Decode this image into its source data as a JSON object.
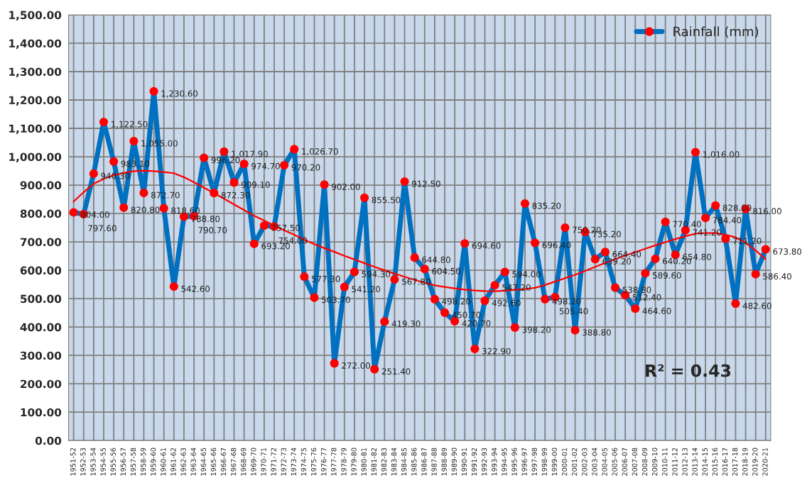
{
  "chart_data": {
    "type": "line",
    "categories": [
      "1951-52",
      "1952-53",
      "1953-54",
      "1954-55",
      "1955-56",
      "1956-57",
      "1957-58",
      "1958-59",
      "1959-60",
      "1960-61",
      "1961-62",
      "1962-63",
      "1963-64",
      "1964-65",
      "1965-66",
      "1966-67",
      "1967-68",
      "1968-69",
      "1969-70",
      "1970-71",
      "1971-72",
      "1972-73",
      "1973-74",
      "1974-75",
      "1975-76",
      "1976-77",
      "1977-78",
      "1978-79",
      "1979-80",
      "1980-81",
      "1981-82",
      "1982-83",
      "1983-84",
      "1984-85",
      "1985-86",
      "1986-87",
      "1987-88",
      "1988-89",
      "1989-90",
      "1990-91",
      "1991-92",
      "1992-93",
      "1993-94",
      "1994-95",
      "1995-96",
      "1996-97",
      "1997-98",
      "1998-99",
      "1999-00",
      "2000-01",
      "2001-02",
      "2002-03",
      "2003-04",
      "2004-05",
      "2005-06",
      "2006-07",
      "2007-08",
      "2008-09",
      "2009-10",
      "2010-11",
      "2011-12",
      "2012-13",
      "2013-14",
      "2014-15",
      "2015-16",
      "2016-17",
      "2017-18",
      "2018-19",
      "2019-20",
      "2020-21"
    ],
    "series": [
      {
        "name": "Rainfall (mm)",
        "color": "#0070c0",
        "marker": "circle",
        "values": [
          804.0,
          797.6,
          940.3,
          1122.5,
          983.1,
          820.8,
          1055.0,
          872.7,
          1230.6,
          818.6,
          542.6,
          788.8,
          790.7,
          996.2,
          872.3,
          1017.9,
          909.1,
          974.7,
          693.2,
          757.5,
          754.0,
          970.2,
          1026.7,
          577.3,
          503.7,
          902.0,
          272.0,
          541.2,
          594.3,
          855.5,
          251.4,
          419.3,
          567.8,
          912.5,
          644.8,
          604.5,
          498.2,
          450.7,
          420.7,
          694.6,
          322.9,
          492.6,
          547.2,
          594.0,
          398.2,
          835.2,
          696.4,
          498.2,
          505.4,
          750.2,
          388.8,
          735.2,
          639.2,
          664.4,
          538.8,
          512.4,
          464.6,
          589.6,
          640.2,
          770.4,
          654.8,
          741.2,
          1016.0,
          784.4,
          828.0,
          711.2,
          482.6,
          816.0,
          586.4,
          673.8
        ],
        "value_labels": [
          "804.00",
          "797.60",
          "940.30",
          "1,122.50",
          "983.10",
          "820.80",
          "1,055.00",
          "872.70",
          "1,230.60",
          "818.60",
          "542.60",
          "788.80",
          "790.70",
          "996.20",
          "872.30",
          "1,017.90",
          "909.10",
          "974.70",
          "693.20",
          "757.50",
          "754.00",
          "970.20",
          "1,026.70",
          "577.30",
          "503.70",
          "902.00",
          "272.00",
          "541.20",
          "594.30",
          "855.50",
          "251.40",
          "419.30",
          "567.80",
          "912.50",
          "644.80",
          "604.50",
          "498.20",
          "450.70",
          "420.70",
          "694.60",
          "322.90",
          "492.60",
          "547.20",
          "594.00",
          "398.20",
          "835.20",
          "696.40",
          "498.20",
          "505.40",
          "750.20",
          "388.80",
          "735.20",
          "639.20",
          "664.40",
          "538.80",
          "512.40",
          "464.60",
          "589.60",
          "640.20",
          "770.40",
          "654.80",
          "741.20",
          "1,016.00",
          "784.40",
          "828.00",
          "711.20",
          "482.60",
          "816.00",
          "586.40",
          "673.80"
        ]
      },
      {
        "type": "line",
        "color": "#ff0000",
        "marker": "none",
        "values": [
          842,
          875,
          905,
          922,
          935,
          943,
          949,
          951,
          949,
          946,
          942,
          928,
          910,
          891,
          872,
          852,
          832,
          812,
          792,
          775,
          758,
          741,
          725,
          708,
          692,
          678,
          665,
          651,
          638,
          625,
          612,
          600,
          588,
          577,
          566,
          556,
          547,
          541,
          536,
          532,
          529,
          527,
          526,
          528,
          531,
          534,
          538,
          548,
          560,
          572,
          584,
          598,
          612,
          626,
          639,
          652,
          664,
          676,
          688,
          699,
          710,
          720,
          729,
          731,
          731,
          725,
          716,
          697,
          670,
          639
        ]
      }
    ],
    "ylim": [
      0,
      1500
    ],
    "yticks": [
      {
        "value": 0,
        "label": "0.00"
      },
      {
        "value": 100,
        "label": "100.00"
      },
      {
        "value": 200,
        "label": "200.00"
      },
      {
        "value": 300,
        "label": "300.00"
      },
      {
        "value": 400,
        "label": "400.00"
      },
      {
        "value": 500,
        "label": "500.00"
      },
      {
        "value": 600,
        "label": "600.00"
      },
      {
        "value": 700,
        "label": "700.00"
      },
      {
        "value": 800,
        "label": "800.00"
      },
      {
        "value": 900,
        "label": "900.00"
      },
      {
        "value": 1000,
        "label": "1,000.00"
      },
      {
        "value": 1100,
        "label": "1,100.00"
      },
      {
        "value": 1200,
        "label": "1,200.00"
      },
      {
        "value": 1300,
        "label": "1,300.00"
      },
      {
        "value": 1400,
        "label": "1,400.00"
      },
      {
        "value": 1500,
        "label": "1,500.00"
      }
    ],
    "annotations": [
      "R² = 0.43"
    ],
    "grid": true,
    "legend": "top right",
    "line_style": "solid"
  }
}
